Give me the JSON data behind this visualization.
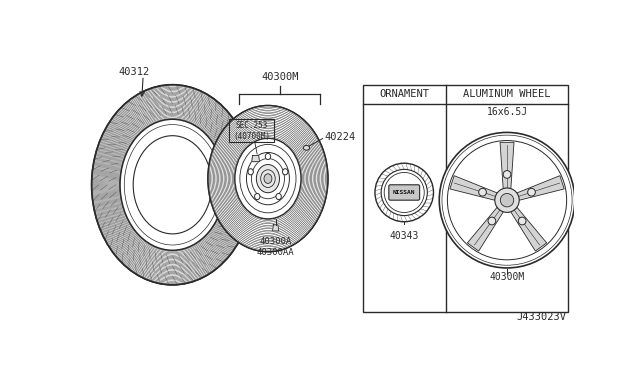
{
  "bg_color": "#ffffff",
  "line_color": "#2a2a2a",
  "text_color": "#2a2a2a",
  "fig_width": 6.4,
  "fig_height": 3.72,
  "dpi": 100,
  "diagram_code": "J433023V",
  "labels": {
    "tire_part": "40312",
    "wheel_label": "40300M",
    "valve_stem_label": "40224",
    "sec_label": "SEC.253\n(40700M)",
    "lug_nut_label": "40300A\n40300AA",
    "ornament_title": "ORNAMENT",
    "ornament_part": "40343",
    "alum_wheel_title": "ALUMINUM WHEEL",
    "alum_wheel_size": "16x6.5J",
    "alum_wheel_part": "40300M"
  }
}
